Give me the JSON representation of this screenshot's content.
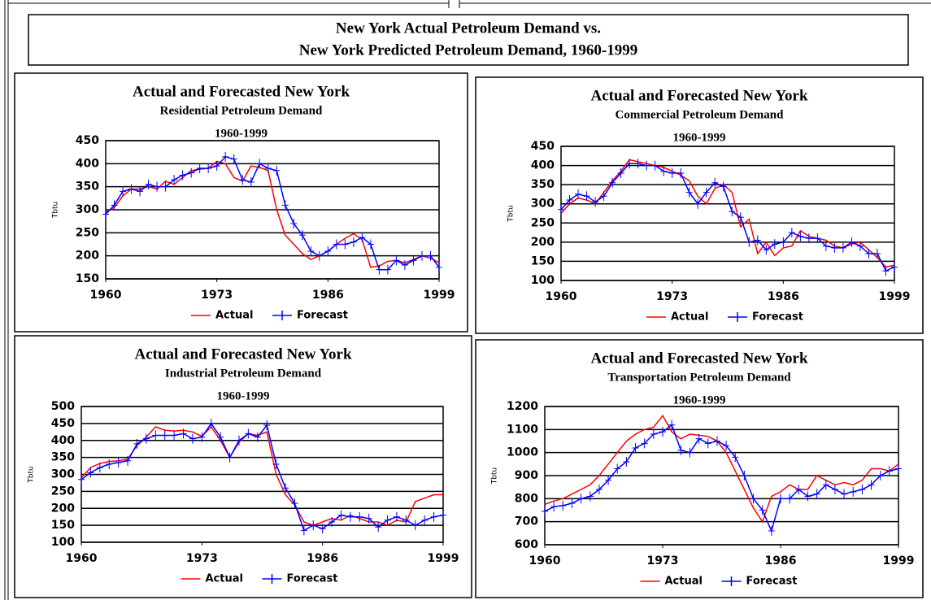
{
  "header": {
    "line1": "New York Actual Petroleum Demand vs.",
    "line2": "New York Predicted Petroleum Demand, 1960-1999"
  },
  "chart_data": [
    {
      "type": "line",
      "title": "Actual and Forecasted New York",
      "subtitle": "Residential Petroleum Demand",
      "period": "1960-1999",
      "y_label": "Tbtu",
      "x": [
        1960,
        1961,
        1962,
        1963,
        1964,
        1965,
        1966,
        1967,
        1968,
        1969,
        1970,
        1971,
        1972,
        1973,
        1974,
        1975,
        1976,
        1977,
        1978,
        1979,
        1980,
        1981,
        1982,
        1983,
        1984,
        1985,
        1986,
        1987,
        1988,
        1989,
        1990,
        1991,
        1992,
        1993,
        1994,
        1995,
        1996,
        1997,
        1998,
        1999
      ],
      "xlim": [
        1960,
        1999
      ],
      "xticks": [
        1960,
        1973,
        1986,
        1999
      ],
      "ylim": [
        150,
        450
      ],
      "yticks": [
        150,
        200,
        250,
        300,
        350,
        400,
        450
      ],
      "grid": true,
      "series": [
        {
          "name": "Actual",
          "color": "#ff0000",
          "values": [
            295,
            305,
            330,
            345,
            345,
            350,
            345,
            362,
            355,
            370,
            385,
            388,
            390,
            405,
            400,
            370,
            362,
            395,
            392,
            385,
            300,
            245,
            225,
            205,
            192,
            200,
            210,
            225,
            238,
            248,
            235,
            175,
            178,
            188,
            190,
            185,
            192,
            200,
            195,
            185
          ]
        },
        {
          "name": "Forecast",
          "color": "#0000ff",
          "values": [
            290,
            310,
            340,
            345,
            340,
            355,
            350,
            350,
            365,
            375,
            380,
            390,
            390,
            395,
            415,
            410,
            365,
            360,
            400,
            390,
            385,
            310,
            270,
            245,
            210,
            200,
            210,
            225,
            225,
            230,
            240,
            225,
            170,
            170,
            190,
            180,
            190,
            200,
            200,
            175
          ]
        }
      ]
    },
    {
      "type": "line",
      "title": "Actual and Forecasted New York",
      "subtitle": "Commercial Petroleum Demand",
      "period": "1960-1999",
      "y_label": "Tbtu",
      "x": [
        1960,
        1961,
        1962,
        1963,
        1964,
        1965,
        1966,
        1967,
        1968,
        1969,
        1970,
        1971,
        1972,
        1973,
        1974,
        1975,
        1976,
        1977,
        1978,
        1979,
        1980,
        1981,
        1982,
        1983,
        1984,
        1985,
        1986,
        1987,
        1988,
        1989,
        1990,
        1991,
        1992,
        1993,
        1994,
        1995,
        1996,
        1997,
        1998,
        1999
      ],
      "xlim": [
        1960,
        1999
      ],
      "xticks": [
        1960,
        1973,
        1986,
        1999
      ],
      "ylim": [
        100,
        450
      ],
      "yticks": [
        100,
        150,
        200,
        250,
        300,
        350,
        400,
        450
      ],
      "grid": true,
      "series": [
        {
          "name": "Actual",
          "color": "#ff0000",
          "values": [
            275,
            300,
            315,
            310,
            300,
            330,
            360,
            385,
            415,
            410,
            405,
            400,
            395,
            385,
            375,
            360,
            320,
            300,
            340,
            350,
            330,
            240,
            260,
            170,
            200,
            165,
            185,
            190,
            230,
            215,
            210,
            205,
            190,
            185,
            195,
            200,
            180,
            160,
            135,
            140
          ]
        },
        {
          "name": "Forecast",
          "color": "#0000ff",
          "values": [
            285,
            310,
            325,
            320,
            305,
            320,
            355,
            380,
            405,
            405,
            400,
            400,
            385,
            380,
            380,
            330,
            300,
            330,
            355,
            345,
            280,
            265,
            200,
            205,
            180,
            195,
            200,
            225,
            215,
            210,
            210,
            190,
            185,
            185,
            200,
            190,
            170,
            170,
            125,
            135
          ]
        }
      ]
    },
    {
      "type": "line",
      "title": "Actual and Forecasted New York",
      "subtitle": "Industrial Petroleum Demand",
      "period": "1960-1999",
      "y_label": "Tbtu",
      "x": [
        1960,
        1961,
        1962,
        1963,
        1964,
        1965,
        1966,
        1967,
        1968,
        1969,
        1970,
        1971,
        1972,
        1973,
        1974,
        1975,
        1976,
        1977,
        1978,
        1979,
        1980,
        1981,
        1982,
        1983,
        1984,
        1985,
        1986,
        1987,
        1988,
        1989,
        1990,
        1991,
        1992,
        1993,
        1994,
        1995,
        1996,
        1997,
        1998,
        1999
      ],
      "xlim": [
        1960,
        1999
      ],
      "xticks": [
        1960,
        1973,
        1986,
        1999
      ],
      "ylim": [
        100,
        500
      ],
      "yticks": [
        100,
        150,
        200,
        250,
        300,
        350,
        400,
        450,
        500
      ],
      "grid": true,
      "series": [
        {
          "name": "Actual",
          "color": "#ff0000",
          "values": [
            290,
            320,
            332,
            338,
            340,
            345,
            385,
            410,
            440,
            430,
            428,
            430,
            425,
            412,
            440,
            400,
            350,
            395,
            420,
            415,
            425,
            300,
            240,
            210,
            160,
            150,
            160,
            170,
            165,
            180,
            170,
            160,
            160,
            150,
            165,
            160,
            220,
            230,
            240,
            240
          ]
        },
        {
          "name": "Forecast",
          "color": "#0000ff",
          "values": [
            285,
            305,
            320,
            330,
            335,
            340,
            390,
            405,
            415,
            415,
            415,
            420,
            405,
            410,
            450,
            410,
            350,
            400,
            420,
            410,
            445,
            330,
            260,
            215,
            135,
            150,
            140,
            160,
            180,
            175,
            175,
            170,
            145,
            165,
            175,
            165,
            150,
            165,
            175,
            180
          ]
        }
      ]
    },
    {
      "type": "line",
      "title": "Actual and Forecasted New York",
      "subtitle": "Transportation Petroleum Demand",
      "period": "1960-1999",
      "y_label": "Tbtu",
      "x": [
        1960,
        1961,
        1962,
        1963,
        1964,
        1965,
        1966,
        1967,
        1968,
        1969,
        1970,
        1971,
        1972,
        1973,
        1974,
        1975,
        1976,
        1977,
        1978,
        1979,
        1980,
        1981,
        1982,
        1983,
        1984,
        1985,
        1986,
        1987,
        1988,
        1989,
        1990,
        1991,
        1992,
        1993,
        1994,
        1995,
        1996,
        1997,
        1998,
        1999
      ],
      "xlim": [
        1960,
        1999
      ],
      "xticks": [
        1960,
        1973,
        1986,
        1999
      ],
      "ylim": [
        600,
        1200
      ],
      "yticks": [
        600,
        700,
        800,
        900,
        1000,
        1100,
        1200
      ],
      "grid": true,
      "series": [
        {
          "name": "Actual",
          "color": "#ff0000",
          "values": [
            775,
            790,
            800,
            820,
            840,
            860,
            900,
            950,
            1000,
            1050,
            1080,
            1100,
            1110,
            1160,
            1090,
            1060,
            1080,
            1075,
            1070,
            1050,
            1000,
            920,
            840,
            760,
            700,
            810,
            830,
            860,
            840,
            840,
            900,
            880,
            860,
            870,
            860,
            880,
            930,
            930,
            920,
            950
          ]
        },
        {
          "name": "Forecast",
          "color": "#0000ff",
          "values": [
            745,
            765,
            770,
            780,
            800,
            810,
            840,
            880,
            930,
            960,
            1020,
            1040,
            1080,
            1090,
            1120,
            1010,
            1000,
            1060,
            1040,
            1050,
            1030,
            980,
            900,
            800,
            750,
            660,
            800,
            800,
            840,
            810,
            820,
            860,
            840,
            820,
            830,
            840,
            860,
            900,
            920,
            930
          ]
        }
      ]
    }
  ]
}
